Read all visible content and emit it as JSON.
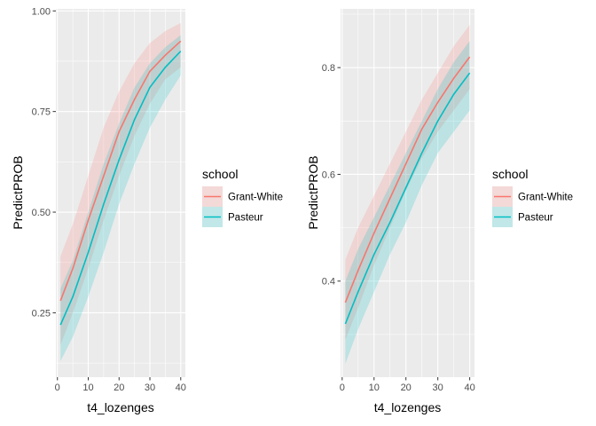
{
  "chart_data": [
    {
      "type": "line",
      "title": "",
      "xlabel": "t4_lozenges",
      "ylabel": "PredictPROB",
      "xlim": [
        -0.5,
        41.5
      ],
      "ylim": [
        0.09,
        1.005
      ],
      "xticks": [
        0,
        10,
        20,
        30,
        40
      ],
      "xtick_labels": [
        "0",
        "10",
        "20",
        "30",
        "40"
      ],
      "yticks": [
        0.25,
        0.5,
        0.75,
        1.0
      ],
      "ytick_labels": [
        "0.25",
        "0.50",
        "0.75",
        "1.00"
      ],
      "grid": true,
      "legend_placement": "right",
      "legend": {
        "title": "school",
        "entries": [
          "Grant-White",
          "Pasteur"
        ]
      },
      "series": [
        {
          "name": "Grant-White",
          "color": "#F8766D",
          "x": [
            1,
            5,
            10,
            15,
            20,
            25,
            30,
            35,
            40
          ],
          "y": [
            0.28,
            0.36,
            0.48,
            0.59,
            0.7,
            0.78,
            0.85,
            0.89,
            0.925
          ],
          "ci_lower": [
            0.17,
            0.25,
            0.36,
            0.48,
            0.59,
            0.69,
            0.77,
            0.83,
            0.86
          ],
          "ci_upper": [
            0.39,
            0.47,
            0.59,
            0.71,
            0.8,
            0.87,
            0.92,
            0.95,
            0.97
          ]
        },
        {
          "name": "Pasteur",
          "color": "#00BFC4",
          "x": [
            1,
            5,
            10,
            15,
            20,
            25,
            30,
            35,
            40
          ],
          "y": [
            0.22,
            0.29,
            0.4,
            0.52,
            0.63,
            0.73,
            0.81,
            0.86,
            0.9
          ],
          "ci_lower": [
            0.13,
            0.19,
            0.29,
            0.4,
            0.52,
            0.62,
            0.71,
            0.78,
            0.84
          ],
          "ci_upper": [
            0.31,
            0.38,
            0.5,
            0.62,
            0.72,
            0.81,
            0.87,
            0.91,
            0.94
          ]
        }
      ]
    },
    {
      "type": "line",
      "title": "",
      "xlabel": "t4_lozenges",
      "ylabel": "PredictPROB",
      "xlim": [
        -0.5,
        41.5
      ],
      "ylim": [
        0.22,
        0.91
      ],
      "xticks": [
        0,
        10,
        20,
        30,
        40
      ],
      "xtick_labels": [
        "0",
        "10",
        "20",
        "30",
        "40"
      ],
      "yticks": [
        0.4,
        0.6,
        0.8
      ],
      "ytick_labels": [
        "0.4",
        "0.6",
        "0.8"
      ],
      "grid": true,
      "legend_placement": "right",
      "legend": {
        "title": "school",
        "entries": [
          "Grant-White",
          "Pasteur"
        ]
      },
      "series": [
        {
          "name": "Grant-White",
          "color": "#F8766D",
          "x": [
            1,
            5,
            10,
            15,
            20,
            25,
            30,
            35,
            40
          ],
          "y": [
            0.36,
            0.42,
            0.49,
            0.555,
            0.62,
            0.685,
            0.735,
            0.78,
            0.82
          ],
          "ci_lower": [
            0.29,
            0.35,
            0.43,
            0.5,
            0.57,
            0.63,
            0.68,
            0.72,
            0.76
          ],
          "ci_upper": [
            0.44,
            0.5,
            0.56,
            0.62,
            0.68,
            0.74,
            0.79,
            0.84,
            0.88
          ]
        },
        {
          "name": "Pasteur",
          "color": "#00BFC4",
          "x": [
            1,
            5,
            10,
            15,
            20,
            25,
            30,
            35,
            40
          ],
          "y": [
            0.32,
            0.38,
            0.45,
            0.51,
            0.575,
            0.64,
            0.7,
            0.75,
            0.79
          ],
          "ci_lower": [
            0.245,
            0.31,
            0.38,
            0.45,
            0.51,
            0.58,
            0.64,
            0.68,
            0.72
          ],
          "ci_upper": [
            0.4,
            0.46,
            0.52,
            0.58,
            0.64,
            0.7,
            0.76,
            0.81,
            0.85
          ]
        }
      ]
    }
  ]
}
